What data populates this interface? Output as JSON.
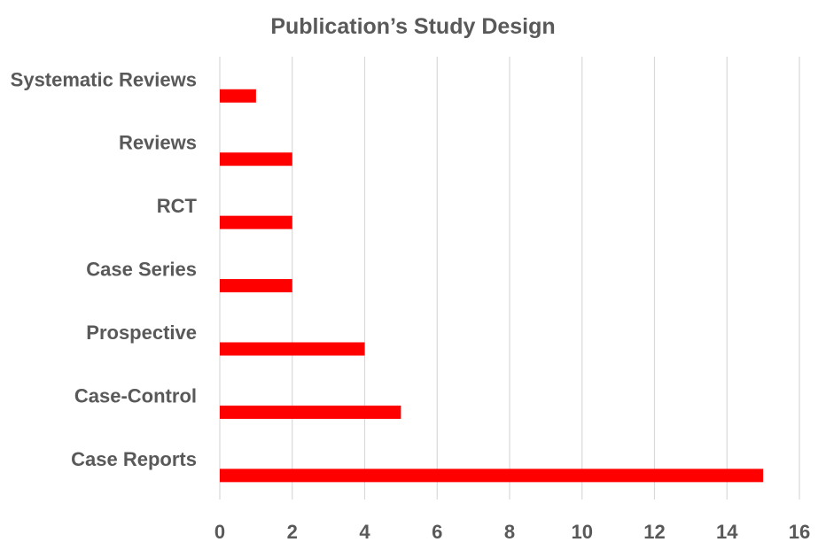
{
  "chart_data": {
    "type": "bar",
    "orientation": "horizontal",
    "title": "Publication’s Study Design",
    "categories": [
      "Systematic Reviews",
      "Reviews",
      "RCT",
      "Case Series",
      "Prospective",
      "Case-Control",
      "Case Reports"
    ],
    "values": [
      1,
      2,
      2,
      2,
      4,
      5,
      15
    ],
    "xlim": [
      0,
      16
    ],
    "xticks": [
      0,
      2,
      4,
      6,
      8,
      10,
      12,
      14,
      16
    ],
    "xlabel": "",
    "ylabel": "",
    "grid": "vertical",
    "legend": "none",
    "bar_color": "#ff0000"
  }
}
